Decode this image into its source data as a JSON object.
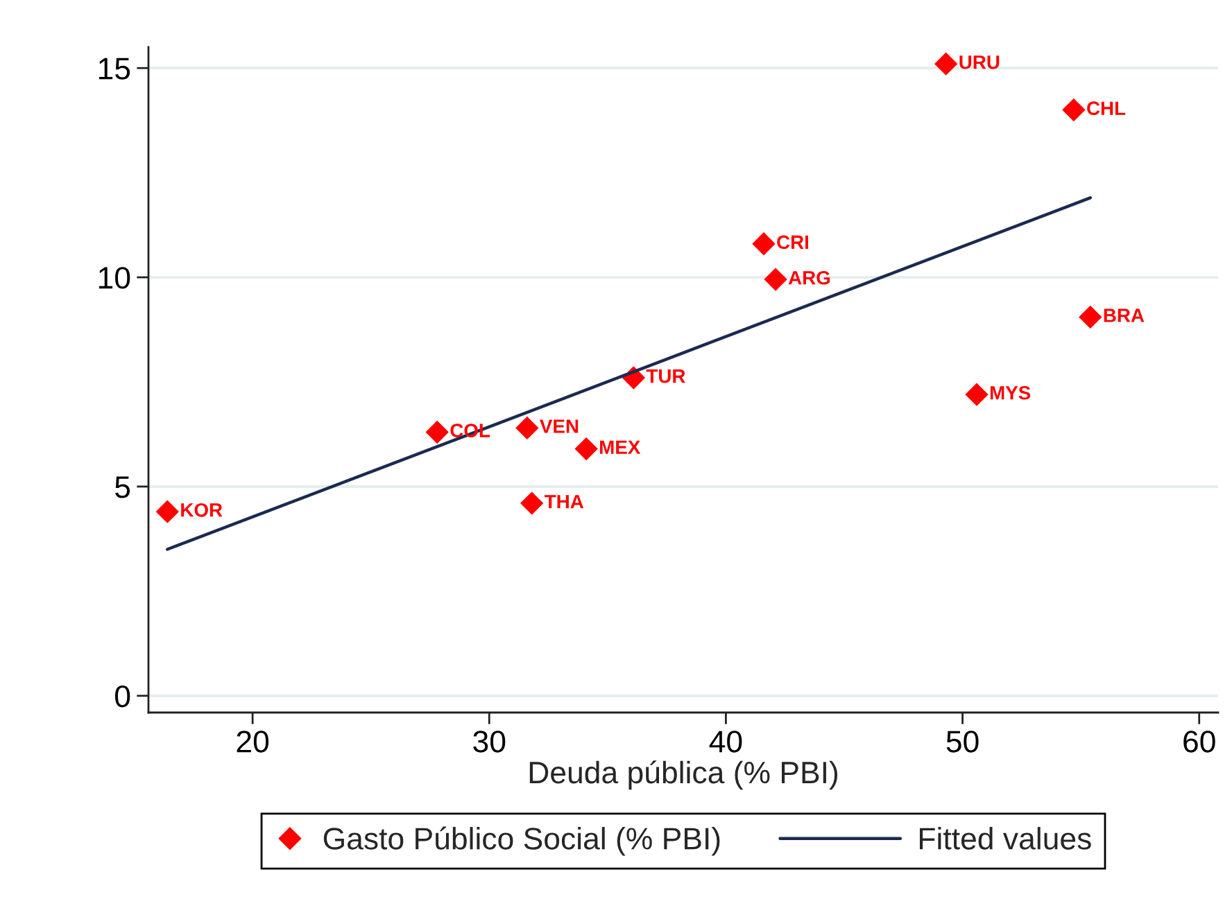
{
  "chart_data": {
    "type": "scatter",
    "xlabel": "Deuda pública (% PBI)",
    "xlim": [
      15.6,
      60.8
    ],
    "ylim": [
      -0.4,
      15.5
    ],
    "xticks": [
      20,
      30,
      40,
      50,
      60
    ],
    "yticks": [
      0,
      5,
      10,
      15
    ],
    "grid": "y",
    "legend": "bottom",
    "series": [
      {
        "name": "Gasto Público Social (% PBI)",
        "type": "scatter",
        "marker": "diamond",
        "color": "#ff0000",
        "x": [
          16.4,
          27.8,
          31.6,
          31.8,
          34.1,
          36.1,
          41.6,
          42.1,
          49.3,
          50.6,
          54.7,
          55.4
        ],
        "values": [
          4.4,
          6.3,
          6.4,
          4.6,
          5.9,
          7.6,
          10.8,
          9.95,
          15.1,
          7.2,
          14.0,
          9.05
        ]
      },
      {
        "name": "Fitted values",
        "type": "line",
        "line_style": "solid",
        "color": "#1b2a50",
        "x": [
          16.4,
          55.4
        ],
        "values": [
          3.5,
          11.9
        ]
      }
    ],
    "annotations": [
      {
        "text": "KOR",
        "x": 16.4,
        "y": 4.4
      },
      {
        "text": "COL",
        "x": 27.8,
        "y": 6.3
      },
      {
        "text": "VEN",
        "x": 31.6,
        "y": 6.4
      },
      {
        "text": "THA",
        "x": 31.8,
        "y": 4.6
      },
      {
        "text": "MEX",
        "x": 34.1,
        "y": 5.9
      },
      {
        "text": "TUR",
        "x": 36.1,
        "y": 7.6
      },
      {
        "text": "CRI",
        "x": 41.6,
        "y": 10.8
      },
      {
        "text": "ARG",
        "x": 42.1,
        "y": 9.95
      },
      {
        "text": "URU",
        "x": 49.3,
        "y": 15.1
      },
      {
        "text": "MYS",
        "x": 50.6,
        "y": 7.2
      },
      {
        "text": "CHL",
        "x": 54.7,
        "y": 14.0
      },
      {
        "text": "BRA",
        "x": 55.4,
        "y": 9.05
      }
    ]
  }
}
